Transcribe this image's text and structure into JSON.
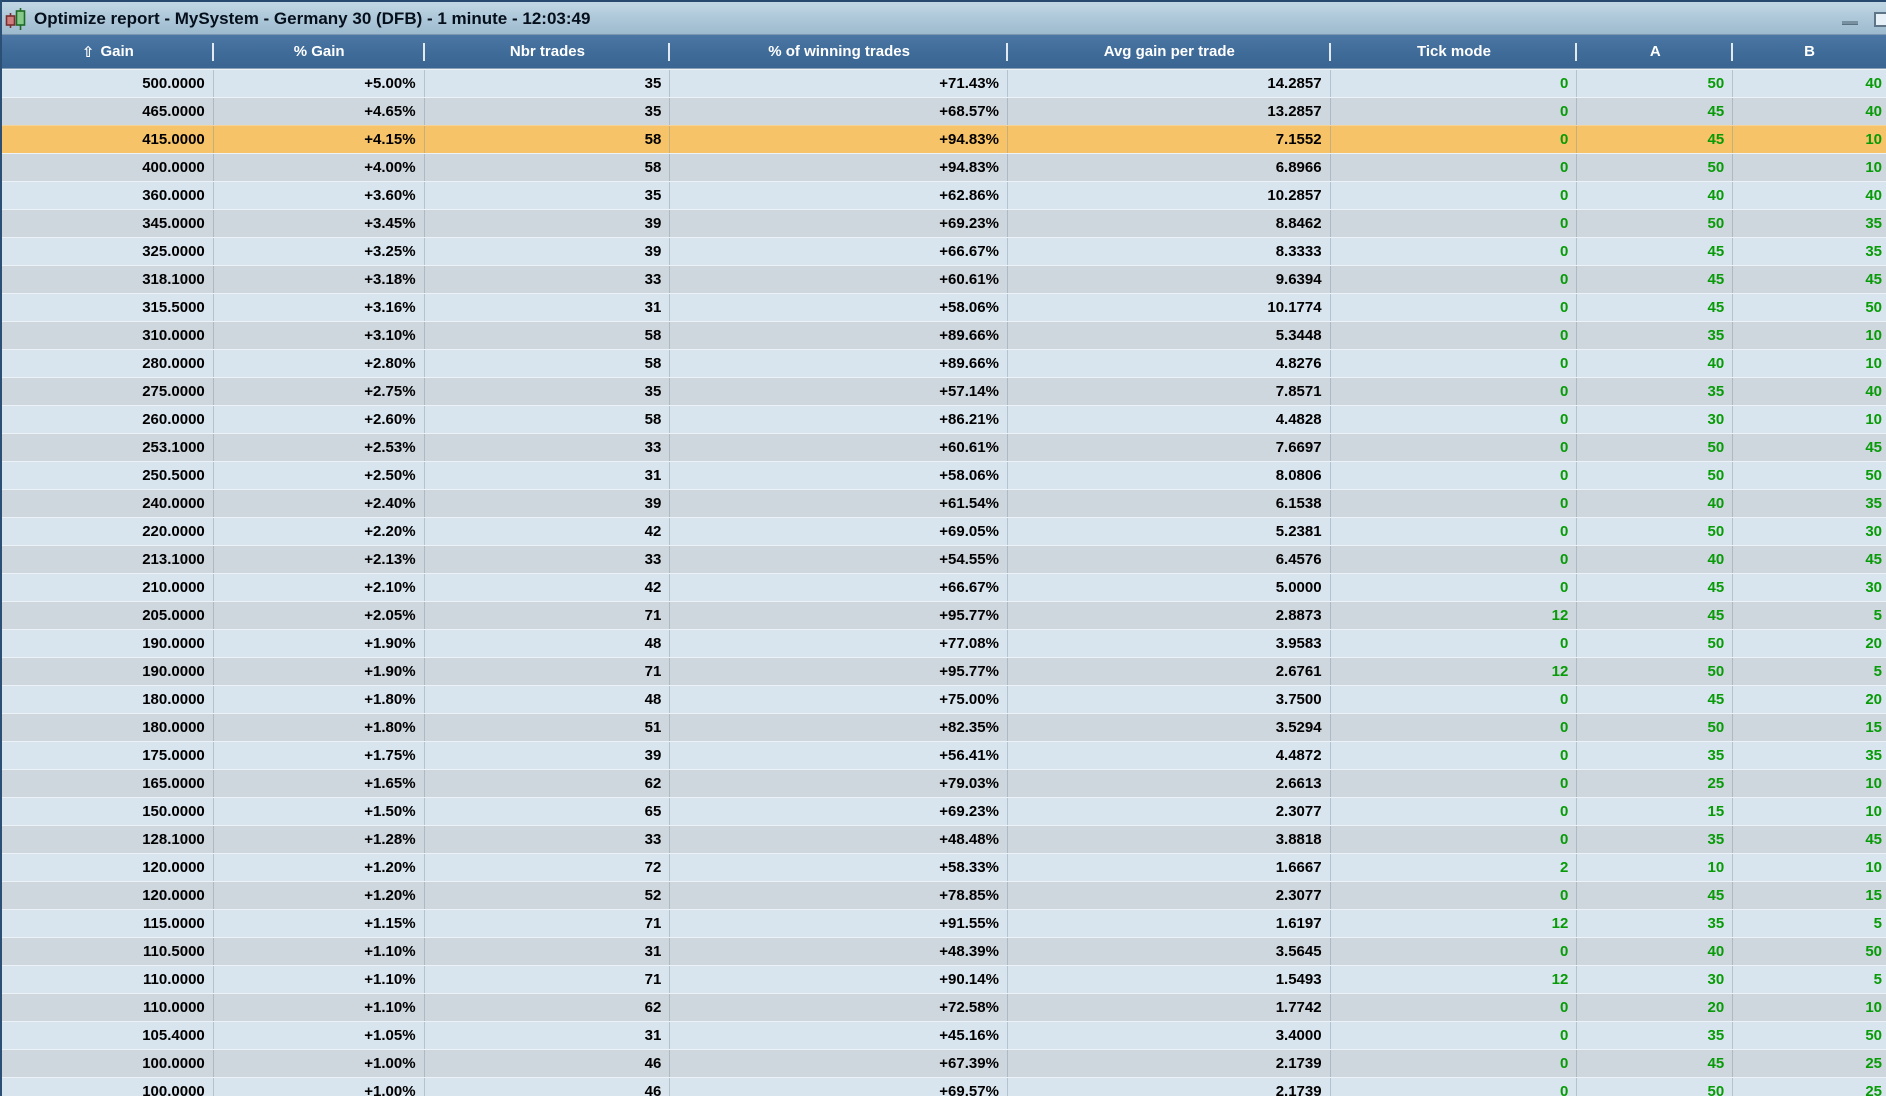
{
  "window": {
    "title": "Optimize report - MySystem - Germany 30 (DFB) - 1 minute - 12:03:49"
  },
  "header": {
    "sort_arrow": "⇧",
    "columns": [
      {
        "key": "gain",
        "label": "Gain",
        "sorted": true
      },
      {
        "key": "pct_gain",
        "label": "% Gain",
        "sorted": false
      },
      {
        "key": "nbr_trades",
        "label": "Nbr trades",
        "sorted": false
      },
      {
        "key": "pct_winning",
        "label": "% of winning trades",
        "sorted": false
      },
      {
        "key": "avg_gain",
        "label": "Avg gain per trade",
        "sorted": false
      },
      {
        "key": "tick_mode",
        "label": "Tick mode",
        "sorted": false
      },
      {
        "key": "a",
        "label": "A",
        "sorted": false
      },
      {
        "key": "b",
        "label": "B",
        "sorted": false
      }
    ]
  },
  "table": {
    "selected_row_index": 2,
    "rows": [
      [
        "500.0000",
        "+5.00%",
        "35",
        "+71.43%",
        "14.2857",
        "0",
        "50",
        "40"
      ],
      [
        "465.0000",
        "+4.65%",
        "35",
        "+68.57%",
        "13.2857",
        "0",
        "45",
        "40"
      ],
      [
        "415.0000",
        "+4.15%",
        "58",
        "+94.83%",
        "7.1552",
        "0",
        "45",
        "10"
      ],
      [
        "400.0000",
        "+4.00%",
        "58",
        "+94.83%",
        "6.8966",
        "0",
        "50",
        "10"
      ],
      [
        "360.0000",
        "+3.60%",
        "35",
        "+62.86%",
        "10.2857",
        "0",
        "40",
        "40"
      ],
      [
        "345.0000",
        "+3.45%",
        "39",
        "+69.23%",
        "8.8462",
        "0",
        "50",
        "35"
      ],
      [
        "325.0000",
        "+3.25%",
        "39",
        "+66.67%",
        "8.3333",
        "0",
        "45",
        "35"
      ],
      [
        "318.1000",
        "+3.18%",
        "33",
        "+60.61%",
        "9.6394",
        "0",
        "45",
        "45"
      ],
      [
        "315.5000",
        "+3.16%",
        "31",
        "+58.06%",
        "10.1774",
        "0",
        "45",
        "50"
      ],
      [
        "310.0000",
        "+3.10%",
        "58",
        "+89.66%",
        "5.3448",
        "0",
        "35",
        "10"
      ],
      [
        "280.0000",
        "+2.80%",
        "58",
        "+89.66%",
        "4.8276",
        "0",
        "40",
        "10"
      ],
      [
        "275.0000",
        "+2.75%",
        "35",
        "+57.14%",
        "7.8571",
        "0",
        "35",
        "40"
      ],
      [
        "260.0000",
        "+2.60%",
        "58",
        "+86.21%",
        "4.4828",
        "0",
        "30",
        "10"
      ],
      [
        "253.1000",
        "+2.53%",
        "33",
        "+60.61%",
        "7.6697",
        "0",
        "50",
        "45"
      ],
      [
        "250.5000",
        "+2.50%",
        "31",
        "+58.06%",
        "8.0806",
        "0",
        "50",
        "50"
      ],
      [
        "240.0000",
        "+2.40%",
        "39",
        "+61.54%",
        "6.1538",
        "0",
        "40",
        "35"
      ],
      [
        "220.0000",
        "+2.20%",
        "42",
        "+69.05%",
        "5.2381",
        "0",
        "50",
        "30"
      ],
      [
        "213.1000",
        "+2.13%",
        "33",
        "+54.55%",
        "6.4576",
        "0",
        "40",
        "45"
      ],
      [
        "210.0000",
        "+2.10%",
        "42",
        "+66.67%",
        "5.0000",
        "0",
        "45",
        "30"
      ],
      [
        "205.0000",
        "+2.05%",
        "71",
        "+95.77%",
        "2.8873",
        "12",
        "45",
        "5"
      ],
      [
        "190.0000",
        "+1.90%",
        "48",
        "+77.08%",
        "3.9583",
        "0",
        "50",
        "20"
      ],
      [
        "190.0000",
        "+1.90%",
        "71",
        "+95.77%",
        "2.6761",
        "12",
        "50",
        "5"
      ],
      [
        "180.0000",
        "+1.80%",
        "48",
        "+75.00%",
        "3.7500",
        "0",
        "45",
        "20"
      ],
      [
        "180.0000",
        "+1.80%",
        "51",
        "+82.35%",
        "3.5294",
        "0",
        "50",
        "15"
      ],
      [
        "175.0000",
        "+1.75%",
        "39",
        "+56.41%",
        "4.4872",
        "0",
        "35",
        "35"
      ],
      [
        "165.0000",
        "+1.65%",
        "62",
        "+79.03%",
        "2.6613",
        "0",
        "25",
        "10"
      ],
      [
        "150.0000",
        "+1.50%",
        "65",
        "+69.23%",
        "2.3077",
        "0",
        "15",
        "10"
      ],
      [
        "128.1000",
        "+1.28%",
        "33",
        "+48.48%",
        "3.8818",
        "0",
        "35",
        "45"
      ],
      [
        "120.0000",
        "+1.20%",
        "72",
        "+58.33%",
        "1.6667",
        "2",
        "10",
        "10"
      ],
      [
        "120.0000",
        "+1.20%",
        "52",
        "+78.85%",
        "2.3077",
        "0",
        "45",
        "15"
      ],
      [
        "115.0000",
        "+1.15%",
        "71",
        "+91.55%",
        "1.6197",
        "12",
        "35",
        "5"
      ],
      [
        "110.5000",
        "+1.10%",
        "31",
        "+48.39%",
        "3.5645",
        "0",
        "40",
        "50"
      ],
      [
        "110.0000",
        "+1.10%",
        "71",
        "+90.14%",
        "1.5493",
        "12",
        "30",
        "5"
      ],
      [
        "110.0000",
        "+1.10%",
        "62",
        "+72.58%",
        "1.7742",
        "0",
        "20",
        "10"
      ],
      [
        "105.4000",
        "+1.05%",
        "31",
        "+45.16%",
        "3.4000",
        "0",
        "35",
        "50"
      ],
      [
        "100.0000",
        "+1.00%",
        "46",
        "+67.39%",
        "2.1739",
        "0",
        "45",
        "25"
      ],
      [
        "100.0000",
        "+1.00%",
        "46",
        "+69.57%",
        "2.1739",
        "0",
        "50",
        "25"
      ]
    ]
  },
  "layout_colors": {
    "header_blue": "#3f6b99",
    "row_light": "#d9e5ee",
    "row_dark": "#ced6de",
    "row_selected_orange": "#f7c368",
    "value_green": "#089b08",
    "value_black": "#000000",
    "titlebar_blue": "#afc9da"
  }
}
